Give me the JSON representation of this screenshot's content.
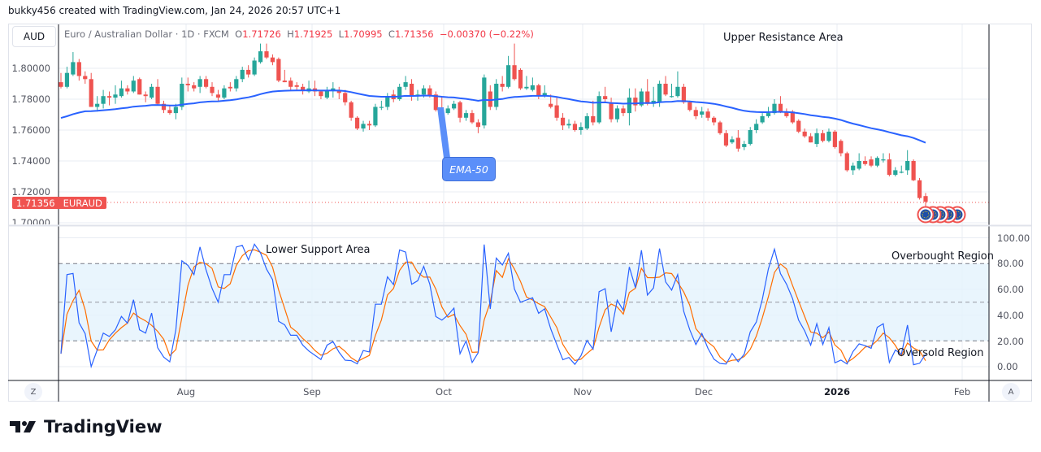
{
  "header": {
    "credit": "bukky456 created with TradingView.com, Jan 24, 2026 20:57 UTC+1"
  },
  "toolbar": {
    "currency_button": "AUD",
    "left_button": "Z",
    "right_button": "A"
  },
  "legend": {
    "symbol": "Euro / Australian Dollar · 1D · FXCM",
    "o_label": "O",
    "o": "1.71726",
    "h_label": "H",
    "h": "1.71925",
    "l_label": "L",
    "l": "1.70995",
    "c_label": "C",
    "c": "1.71356",
    "change": "−0.00370 (−0.22%)"
  },
  "price_tag": {
    "value": "1.71356",
    "symbol": "EURAUD"
  },
  "annotations": {
    "upper": "Upper Resistance Area",
    "lower": "Lower Support Area",
    "overbought": "Overbought Region",
    "oversold": "Oversold Region",
    "ema": "EMA-50"
  },
  "logo": {
    "text": "TradingView"
  },
  "colors": {
    "up": "#26a69a",
    "down": "#ef5350",
    "ema": "#2962ff",
    "stoch_k": "#2962ff",
    "stoch_d": "#ff6d00",
    "band": "#e3f2fd"
  },
  "chart_data": [
    {
      "type": "candlestick",
      "symbol": "EURAUD",
      "interval": "1D",
      "ylim": [
        1.7,
        1.82
      ],
      "y_ticks": [
        "1.80000",
        "1.78000",
        "1.76000",
        "1.74000",
        "1.72000",
        "1.70000"
      ],
      "x_ticks": [
        "Aug",
        "Sep",
        "Oct",
        "Nov",
        "Dec",
        "2026",
        "Feb"
      ],
      "grid": true,
      "overlay": "EMA-50",
      "ohlc": [
        [
          1.791,
          1.797,
          1.787,
          1.788
        ],
        [
          1.788,
          1.801,
          1.787,
          1.797
        ],
        [
          1.796,
          1.8105,
          1.795,
          1.804
        ],
        [
          1.804,
          1.806,
          1.792,
          1.795
        ],
        [
          1.795,
          1.798,
          1.79,
          1.793
        ],
        [
          1.793,
          1.797,
          1.775,
          1.775
        ],
        [
          1.775,
          1.782,
          1.772,
          1.777
        ],
        [
          1.777,
          1.786,
          1.774,
          1.782
        ],
        [
          1.782,
          1.785,
          1.776,
          1.781
        ],
        [
          1.781,
          1.789,
          1.777,
          1.783
        ],
        [
          1.782,
          1.792,
          1.781,
          1.787
        ],
        [
          1.787,
          1.789,
          1.783,
          1.785
        ],
        [
          1.785,
          1.795,
          1.784,
          1.792
        ],
        [
          1.793,
          1.794,
          1.783,
          1.783
        ],
        [
          1.783,
          1.785,
          1.778,
          1.782
        ],
        [
          1.781,
          1.79,
          1.78,
          1.788
        ],
        [
          1.788,
          1.793,
          1.776,
          1.777
        ],
        [
          1.777,
          1.779,
          1.771,
          1.773
        ],
        [
          1.773,
          1.776,
          1.77,
          1.771
        ],
        [
          1.771,
          1.777,
          1.767,
          1.775
        ],
        [
          1.775,
          1.794,
          1.773,
          1.79
        ],
        [
          1.79,
          1.794,
          1.785,
          1.789
        ],
        [
          1.789,
          1.791,
          1.785,
          1.787
        ],
        [
          1.788,
          1.795,
          1.784,
          1.793
        ],
        [
          1.793,
          1.795,
          1.787,
          1.788
        ],
        [
          1.788,
          1.791,
          1.782,
          1.784
        ],
        [
          1.783,
          1.786,
          1.779,
          1.781
        ],
        [
          1.781,
          1.789,
          1.78,
          1.787
        ],
        [
          1.788,
          1.791,
          1.785,
          1.787
        ],
        [
          1.787,
          1.795,
          1.785,
          1.793
        ],
        [
          1.793,
          1.801,
          1.791,
          1.799
        ],
        [
          1.799,
          1.802,
          1.794,
          1.796
        ],
        [
          1.796,
          1.807,
          1.795,
          1.805
        ],
        [
          1.804,
          1.816,
          1.803,
          1.811
        ],
        [
          1.811,
          1.816,
          1.806,
          1.807
        ],
        [
          1.807,
          1.809,
          1.802,
          1.804
        ],
        [
          1.806,
          1.807,
          1.791,
          1.792
        ],
        [
          1.792,
          1.799,
          1.791,
          1.791
        ],
        [
          1.792,
          1.794,
          1.786,
          1.788
        ],
        [
          1.789,
          1.791,
          1.786,
          1.788
        ],
        [
          1.788,
          1.79,
          1.783,
          1.786
        ],
        [
          1.785,
          1.792,
          1.784,
          1.787
        ],
        [
          1.787,
          1.792,
          1.782,
          1.785
        ],
        [
          1.785,
          1.786,
          1.78,
          1.782
        ],
        [
          1.781,
          1.788,
          1.78,
          1.786
        ],
        [
          1.786,
          1.791,
          1.781,
          1.787
        ],
        [
          1.786,
          1.788,
          1.78,
          1.784
        ],
        [
          1.784,
          1.786,
          1.776,
          1.778
        ],
        [
          1.778,
          1.779,
          1.766,
          1.768
        ],
        [
          1.768,
          1.769,
          1.76,
          1.761
        ],
        [
          1.761,
          1.766,
          1.759,
          1.764
        ],
        [
          1.764,
          1.766,
          1.76,
          1.763
        ],
        [
          1.763,
          1.777,
          1.762,
          1.775
        ],
        [
          1.775,
          1.779,
          1.773,
          1.775
        ],
        [
          1.775,
          1.784,
          1.773,
          1.782
        ],
        [
          1.783,
          1.786,
          1.778,
          1.78
        ],
        [
          1.78,
          1.79,
          1.779,
          1.788
        ],
        [
          1.788,
          1.795,
          1.786,
          1.791
        ],
        [
          1.79,
          1.793,
          1.779,
          1.782
        ],
        [
          1.782,
          1.786,
          1.779,
          1.783
        ],
        [
          1.783,
          1.789,
          1.781,
          1.787
        ],
        [
          1.787,
          1.789,
          1.781,
          1.782
        ],
        [
          1.783,
          1.785,
          1.772,
          1.773
        ],
        [
          1.773,
          1.782,
          1.771,
          1.772
        ],
        [
          1.771,
          1.776,
          1.77,
          1.774
        ],
        [
          1.774,
          1.779,
          1.773,
          1.777
        ],
        [
          1.778,
          1.779,
          1.765,
          1.768
        ],
        [
          1.768,
          1.773,
          1.766,
          1.771
        ],
        [
          1.771,
          1.773,
          1.764,
          1.765
        ],
        [
          1.765,
          1.767,
          1.758,
          1.762
        ],
        [
          1.763,
          1.796,
          1.761,
          1.794
        ],
        [
          1.785,
          1.789,
          1.773,
          1.775
        ],
        [
          1.775,
          1.793,
          1.773,
          1.79
        ],
        [
          1.79,
          1.795,
          1.785,
          1.788
        ],
        [
          1.788,
          1.808,
          1.787,
          1.802
        ],
        [
          1.802,
          1.816,
          1.792,
          1.793
        ],
        [
          1.799,
          1.8,
          1.786,
          1.787
        ],
        [
          1.787,
          1.795,
          1.786,
          1.788
        ],
        [
          1.786,
          1.794,
          1.785,
          1.789
        ],
        [
          1.789,
          1.79,
          1.78,
          1.782
        ],
        [
          1.782,
          1.789,
          1.781,
          1.784
        ],
        [
          1.777,
          1.783,
          1.774,
          1.775
        ],
        [
          1.776,
          1.781,
          1.766,
          1.768
        ],
        [
          1.768,
          1.771,
          1.76,
          1.763
        ],
        [
          1.763,
          1.767,
          1.761,
          1.764
        ],
        [
          1.764,
          1.766,
          1.759,
          1.76
        ],
        [
          1.76,
          1.765,
          1.757,
          1.762
        ],
        [
          1.761,
          1.771,
          1.76,
          1.769
        ],
        [
          1.769,
          1.779,
          1.763,
          1.765
        ],
        [
          1.765,
          1.785,
          1.764,
          1.782
        ],
        [
          1.782,
          1.788,
          1.778,
          1.78
        ],
        [
          1.778,
          1.781,
          1.765,
          1.767
        ],
        [
          1.767,
          1.776,
          1.765,
          1.774
        ],
        [
          1.774,
          1.776,
          1.769,
          1.771
        ],
        [
          1.771,
          1.787,
          1.763,
          1.781
        ],
        [
          1.781,
          1.787,
          1.772,
          1.776
        ],
        [
          1.776,
          1.787,
          1.775,
          1.785
        ],
        [
          1.785,
          1.793,
          1.776,
          1.777
        ],
        [
          1.777,
          1.788,
          1.775,
          1.779
        ],
        [
          1.778,
          1.792,
          1.775,
          1.79
        ],
        [
          1.79,
          1.795,
          1.782,
          1.783
        ],
        [
          1.782,
          1.79,
          1.781,
          1.782
        ],
        [
          1.782,
          1.798,
          1.781,
          1.788
        ],
        [
          1.788,
          1.79,
          1.777,
          1.778
        ],
        [
          1.778,
          1.779,
          1.772,
          1.773
        ],
        [
          1.773,
          1.775,
          1.767,
          1.769
        ],
        [
          1.77,
          1.775,
          1.768,
          1.772
        ],
        [
          1.772,
          1.774,
          1.766,
          1.768
        ],
        [
          1.768,
          1.769,
          1.763,
          1.765
        ],
        [
          1.765,
          1.766,
          1.757,
          1.758
        ],
        [
          1.758,
          1.76,
          1.749,
          1.75
        ],
        [
          1.752,
          1.756,
          1.751,
          1.754
        ],
        [
          1.755,
          1.76,
          1.746,
          1.748
        ],
        [
          1.749,
          1.753,
          1.747,
          1.751
        ],
        [
          1.751,
          1.762,
          1.75,
          1.76
        ],
        [
          1.76,
          1.767,
          1.758,
          1.764
        ],
        [
          1.765,
          1.771,
          1.764,
          1.769
        ],
        [
          1.769,
          1.775,
          1.768,
          1.771
        ],
        [
          1.771,
          1.78,
          1.77,
          1.777
        ],
        [
          1.777,
          1.782,
          1.771,
          1.772
        ],
        [
          1.772,
          1.774,
          1.768,
          1.769
        ],
        [
          1.772,
          1.773,
          1.764,
          1.765
        ],
        [
          1.766,
          1.767,
          1.758,
          1.759
        ],
        [
          1.759,
          1.761,
          1.755,
          1.756
        ],
        [
          1.756,
          1.758,
          1.752,
          1.752
        ],
        [
          1.751,
          1.761,
          1.749,
          1.758
        ],
        [
          1.758,
          1.76,
          1.752,
          1.753
        ],
        [
          1.753,
          1.761,
          1.752,
          1.759
        ],
        [
          1.759,
          1.76,
          1.748,
          1.749
        ],
        [
          1.753,
          1.754,
          1.743,
          1.745
        ],
        [
          1.745,
          1.746,
          1.733,
          1.734
        ],
        [
          1.734,
          1.739,
          1.731,
          1.737
        ],
        [
          1.735,
          1.745,
          1.734,
          1.74
        ],
        [
          1.74,
          1.743,
          1.737,
          1.738
        ],
        [
          1.741,
          1.743,
          1.736,
          1.737
        ],
        [
          1.737,
          1.743,
          1.736,
          1.742
        ],
        [
          1.741,
          1.745,
          1.739,
          1.741
        ],
        [
          1.741,
          1.745,
          1.73,
          1.731
        ],
        [
          1.731,
          1.736,
          1.73,
          1.734
        ],
        [
          1.733,
          1.737,
          1.732,
          1.733
        ],
        [
          1.734,
          1.747,
          1.731,
          1.74
        ],
        [
          1.74,
          1.741,
          1.727,
          1.7275
        ],
        [
          1.7275,
          1.729,
          1.715,
          1.716
        ],
        [
          1.71726,
          1.71925,
          1.70995,
          1.71356
        ]
      ]
    },
    {
      "type": "line",
      "indicator": "Stochastic",
      "ylim": [
        -5,
        105
      ],
      "y_ticks": [
        "100.00",
        "80.00",
        "60.00",
        "40.00",
        "20.00",
        "0.00"
      ],
      "levels": [
        80,
        50,
        20
      ],
      "band": [
        20,
        80
      ]
    }
  ]
}
